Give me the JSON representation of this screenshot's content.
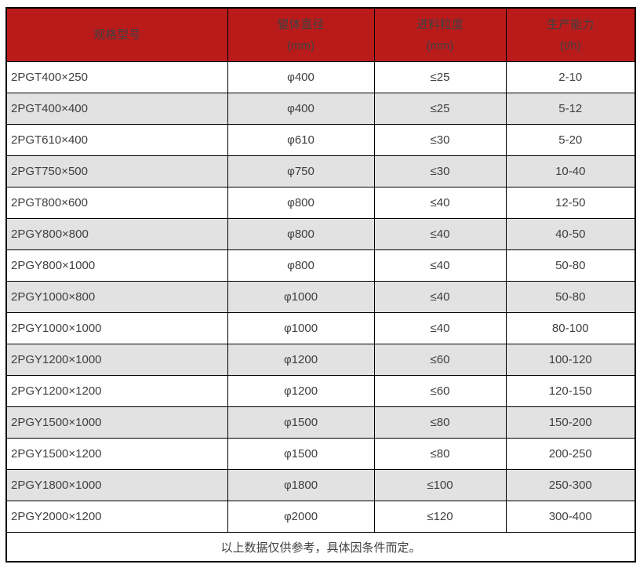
{
  "colors": {
    "header_bg": "#b91b1b",
    "header_text": "#ffffff",
    "row_bg": "#ffffff",
    "row_alt_bg": "#e2e2e2",
    "border": "#000000",
    "body_text": "#404040"
  },
  "table": {
    "columns": [
      {
        "title": "规格型号"
      },
      {
        "title": "辊体直径",
        "unit": "(mm)"
      },
      {
        "title": "进料粒度",
        "unit": "(mm)"
      },
      {
        "title": "生产能力",
        "unit": "(t/h)"
      }
    ],
    "rows": [
      [
        "2PGT400×250",
        "φ400",
        "≤25",
        "2-10"
      ],
      [
        "2PGT400×400",
        "φ400",
        "≤25",
        "5-12"
      ],
      [
        "2PGT610×400",
        "φ610",
        "≤30",
        "5-20"
      ],
      [
        "2PGT750×500",
        "φ750",
        "≤30",
        "10-40"
      ],
      [
        "2PGT800×600",
        "φ800",
        "≤40",
        "12-50"
      ],
      [
        "2PGY800×800",
        "φ800",
        "≤40",
        "40-50"
      ],
      [
        "2PGY800×1000",
        "φ800",
        "≤40",
        "50-80"
      ],
      [
        "2PGY1000×800",
        "φ1000",
        "≤40",
        "50-80"
      ],
      [
        "2PGY1000×1000",
        "φ1000",
        "≤40",
        "80-100"
      ],
      [
        "2PGY1200×1000",
        "φ1200",
        "≤60",
        "100-120"
      ],
      [
        "2PGY1200×1200",
        "φ1200",
        "≤60",
        "120-150"
      ],
      [
        "2PGY1500×1000",
        "φ1500",
        "≤80",
        "150-200"
      ],
      [
        "2PGY1500×1200",
        "φ1500",
        "≤80",
        "200-250"
      ],
      [
        "2PGY1800×1000",
        "φ1800",
        "≤100",
        "250-300"
      ],
      [
        "2PGY2000×1200",
        "φ2000",
        "≤120",
        "300-400"
      ]
    ],
    "footnote": "以上数据仅供参考，具体因条件而定。"
  }
}
